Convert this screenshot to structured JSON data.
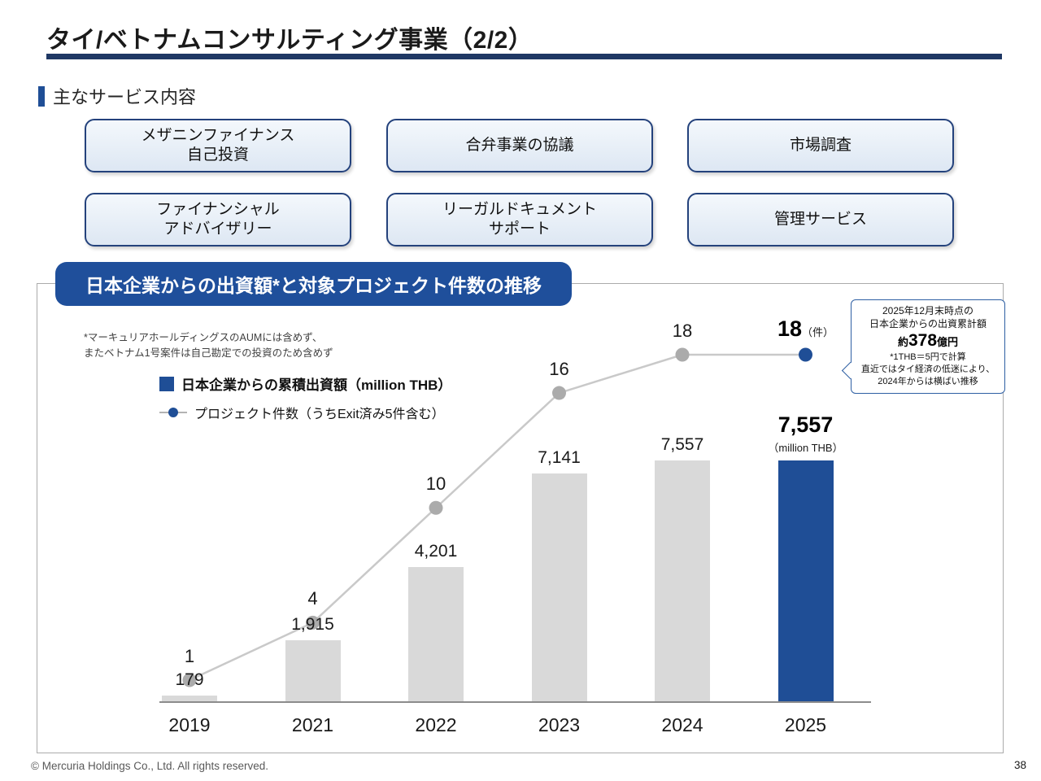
{
  "slide": {
    "title": "タイ/ベトナムコンサルティング事業（2/2）",
    "footer": "© Mercuria Holdings Co., Ltd. All rights reserved.",
    "page_number": "38"
  },
  "services": {
    "heading": "主なサービス内容",
    "boxes": [
      {
        "label": "メザニンファイナンス\n自己投資"
      },
      {
        "label": "合弁事業の協議"
      },
      {
        "label": "市場調査"
      },
      {
        "label": "ファイナンシャル\nアドバイザリー"
      },
      {
        "label": "リーガルドキュメント\nサポート"
      },
      {
        "label": "管理サービス"
      }
    ]
  },
  "chart_section": {
    "header": "日本企業からの出資額*と対象プロジェクト件数の推移",
    "footnote": "*マーキュリアホールディングスのAUMには含めず、\nまたベトナム1号案件は自己勘定での投資のため含めず",
    "legend": [
      {
        "label": "日本企業からの累積出資額（million THB）"
      },
      {
        "label": "プロジェクト件数（うちExit済み5件含む）"
      }
    ],
    "callout": {
      "line1": "2025年12月末時点の",
      "line2": "日本企業からの出資累計額",
      "amount_prefix": "約",
      "amount_value": "378",
      "amount_suffix": "億円",
      "note1": "*1THB＝5円で計算",
      "note2": "直近ではタイ経済の低迷により、",
      "note3": "2024年からは横ばい推移"
    }
  },
  "chart_data": {
    "type": "bar",
    "combo": "bar+line",
    "title": "日本企業からの出資額と対象プロジェクト件数の推移",
    "categories": [
      "2019",
      "2021",
      "2022",
      "2023",
      "2024",
      "2025"
    ],
    "series": [
      {
        "name": "日本企業からの累積出資額（million THB）",
        "type": "bar",
        "values": [
          179,
          1915,
          4201,
          7141,
          7557,
          7557
        ],
        "value_labels": [
          "179",
          "1,915",
          "4,201",
          "7,141",
          "7,557",
          "7,557"
        ]
      },
      {
        "name": "プロジェクト件数（うちExit済み5件含む）",
        "type": "line",
        "values": [
          1,
          4,
          10,
          16,
          18,
          18
        ]
      }
    ],
    "highlight_index": 5,
    "highlight_bar_unit": "（million THB）",
    "highlight_count_unit": "（件）",
    "colors": {
      "bar_default": "#d9d9d9",
      "bar_highlight": "#1f4e96",
      "line": "#c9c9c9",
      "marker_default": "#ababab",
      "marker_highlight": "#1f4e96"
    },
    "ylim_bar": [
      0,
      8000
    ],
    "ylim_line": [
      0,
      20
    ],
    "grid": false,
    "legend_position": "top-left"
  }
}
